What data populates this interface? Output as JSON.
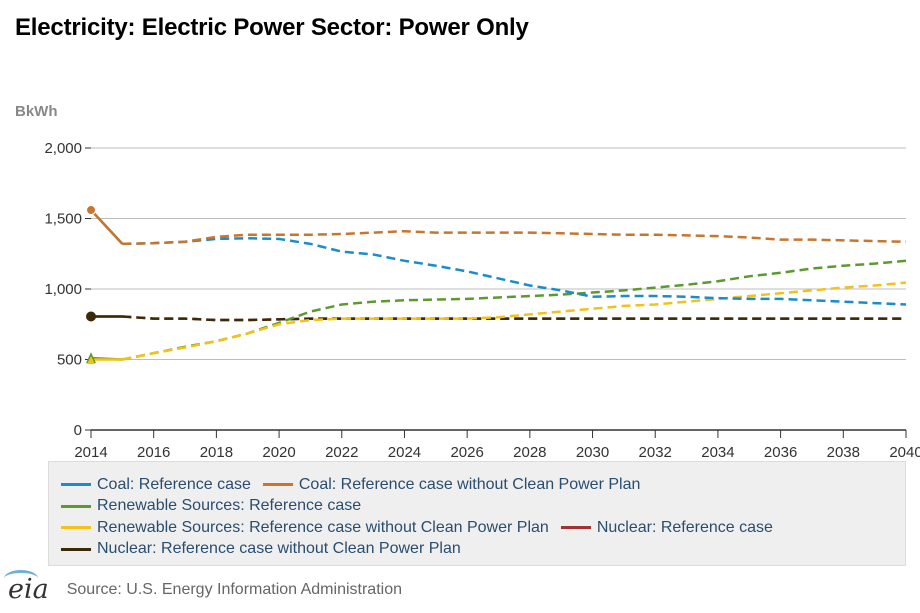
{
  "title": "Electricity: Electric Power Sector: Power Only",
  "unit_label": "BkWh",
  "source": "Source: U.S. Energy Information Administration",
  "logo_text": "eia",
  "colors": {
    "coal_ref": "#1a8ccc",
    "coal_nocpp": "#c8752d",
    "renew_ref": "#5c9a2e",
    "renew_nocpp": "#f2c218",
    "nuclear_ref": "#a23232",
    "nuclear_nocpp": "#3a2a08",
    "grid": "#bdbdbd",
    "axis": "#333333"
  },
  "chart_data": {
    "type": "line",
    "xlim": [
      2014,
      2040
    ],
    "ylim": [
      0,
      2000
    ],
    "x_ticks": [
      "2014",
      "2016",
      "2018",
      "2020",
      "2022",
      "2024",
      "2026",
      "2028",
      "2030",
      "2032",
      "2034",
      "2036",
      "2038",
      "2040"
    ],
    "y_ticks": [
      "0",
      "500",
      "1,000",
      "1,500",
      "2,000"
    ],
    "grid": "horizontal",
    "legend_placement": "bottom",
    "x": [
      2014,
      2015,
      2016,
      2017,
      2018,
      2019,
      2020,
      2021,
      2022,
      2023,
      2024,
      2025,
      2026,
      2027,
      2028,
      2029,
      2030,
      2031,
      2032,
      2033,
      2034,
      2035,
      2036,
      2037,
      2038,
      2039,
      2040
    ],
    "series": [
      {
        "name": "Coal: Reference case",
        "color_key": "coal_ref",
        "values": [
          1560,
          1320,
          1325,
          1335,
          1355,
          1360,
          1355,
          1320,
          1265,
          1245,
          1200,
          1165,
          1125,
          1075,
          1025,
          990,
          945,
          950,
          950,
          945,
          935,
          930,
          930,
          920,
          910,
          900,
          890
        ]
      },
      {
        "name": "Coal: Reference case without Clean Power Plan",
        "color_key": "coal_nocpp",
        "values": [
          1560,
          1320,
          1325,
          1335,
          1370,
          1385,
          1385,
          1385,
          1390,
          1400,
          1410,
          1400,
          1400,
          1400,
          1400,
          1395,
          1390,
          1385,
          1385,
          1380,
          1375,
          1365,
          1350,
          1350,
          1345,
          1340,
          1335
        ]
      },
      {
        "name": "Renewable Sources: Reference case",
        "color_key": "renew_ref",
        "values": [
          510,
          500,
          545,
          590,
          630,
          685,
          760,
          840,
          890,
          910,
          920,
          925,
          930,
          940,
          950,
          960,
          975,
          990,
          1010,
          1030,
          1055,
          1090,
          1115,
          1145,
          1165,
          1180,
          1200
        ]
      },
      {
        "name": "Renewable Sources: Reference case without Clean Power Plan",
        "color_key": "renew_nocpp",
        "values": [
          500,
          500,
          545,
          585,
          630,
          685,
          750,
          780,
          790,
          790,
          790,
          790,
          790,
          800,
          820,
          840,
          860,
          880,
          890,
          910,
          930,
          950,
          970,
          990,
          1010,
          1025,
          1045
        ]
      },
      {
        "name": "Nuclear: Reference case",
        "color_key": "nuclear_ref",
        "values": [
          805,
          805,
          790,
          790,
          780,
          780,
          785,
          790,
          790,
          790,
          790,
          790,
          790,
          790,
          790,
          790,
          790,
          790,
          790,
          790,
          790,
          790,
          790,
          790,
          790,
          790,
          790
        ]
      },
      {
        "name": "Nuclear: Reference case without Clean Power Plan",
        "color_key": "nuclear_nocpp",
        "values": [
          805,
          805,
          790,
          790,
          780,
          780,
          785,
          790,
          790,
          790,
          790,
          790,
          790,
          790,
          790,
          790,
          790,
          790,
          790,
          790,
          790,
          790,
          790,
          790,
          790,
          790,
          790
        ]
      }
    ]
  }
}
